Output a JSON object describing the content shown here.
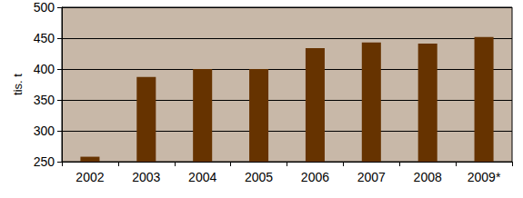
{
  "chart_data": {
    "type": "bar",
    "y_label": "tis. t",
    "categories": [
      "2002",
      "2003",
      "2004",
      "2005",
      "2006",
      "2007",
      "2008",
      "2009*"
    ],
    "values": [
      258,
      387,
      400,
      400,
      434,
      443,
      441,
      452
    ],
    "color": "#663300",
    "ylim": [
      250,
      500
    ],
    "yticks": [
      250,
      300,
      350,
      400,
      450,
      500
    ],
    "grid": true
  }
}
